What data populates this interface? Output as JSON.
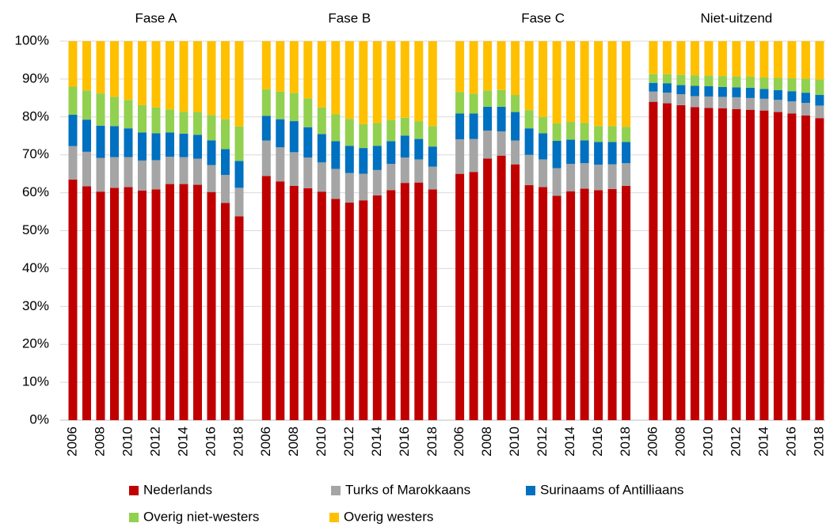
{
  "chart_data": {
    "type": "bar",
    "stacked": true,
    "groups": [
      "Fase A",
      "Fase B",
      "Fase C",
      "Niet-uitzend"
    ],
    "categories": [
      "2006",
      null,
      "2008",
      null,
      "2010",
      null,
      "2012",
      null,
      "2014",
      null,
      "2016",
      null,
      "2018"
    ],
    "ylim": [
      0,
      100
    ],
    "yticks": [
      {
        "value": 0,
        "label": "0%"
      },
      {
        "value": 10,
        "label": "10%"
      },
      {
        "value": 20,
        "label": "20%"
      },
      {
        "value": 30,
        "label": "30%"
      },
      {
        "value": 40,
        "label": "40%"
      },
      {
        "value": 50,
        "label": "50%"
      },
      {
        "value": 60,
        "label": "60%"
      },
      {
        "value": 70,
        "label": "70%"
      },
      {
        "value": 80,
        "label": "80%"
      },
      {
        "value": 90,
        "label": "90%"
      },
      {
        "value": 100,
        "label": "100%"
      }
    ],
    "grid": true,
    "series": [
      {
        "name": "Nederlands",
        "color": "#c00000",
        "values": [
          [
            63.5,
            61.7,
            60.3,
            61.3,
            61.5,
            60.6,
            60.9,
            62.3,
            62.3,
            62.1,
            60.2,
            57.3,
            53.8
          ],
          [
            64.4,
            63.0,
            61.8,
            61.2,
            60.3,
            58.4,
            57.4,
            58.0,
            59.3,
            60.7,
            62.6,
            62.7,
            60.9
          ],
          [
            65.0,
            65.5,
            69.0,
            69.8,
            67.5,
            62.0,
            61.5,
            59.2,
            60.4,
            61.1,
            60.7,
            61.0,
            61.8
          ],
          [
            84.0,
            83.6,
            83.1,
            82.6,
            82.4,
            82.3,
            82.1,
            81.9,
            81.7,
            81.3,
            80.9,
            80.4,
            79.7
          ]
        ]
      },
      {
        "name": "Turks of Marokkaans",
        "color": "#a5a5a5",
        "values": [
          [
            8.8,
            9.1,
            8.9,
            8.1,
            7.9,
            7.9,
            7.7,
            7.2,
            7.1,
            6.9,
            7.1,
            7.4,
            7.5
          ],
          [
            9.4,
            9.0,
            8.9,
            8.1,
            7.7,
            7.9,
            7.8,
            7.0,
            6.7,
            6.9,
            6.7,
            6.1,
            6.0
          ],
          [
            9.1,
            8.7,
            7.4,
            6.4,
            6.3,
            8.0,
            7.3,
            7.3,
            7.2,
            6.7,
            6.7,
            6.5,
            6.0
          ],
          [
            2.7,
            2.8,
            2.9,
            2.9,
            3.0,
            3.0,
            3.1,
            3.1,
            3.1,
            3.2,
            3.2,
            3.3,
            3.3
          ]
        ]
      },
      {
        "name": "Surinaams of Antilliaans",
        "color": "#0070c0",
        "values": [
          [
            8.3,
            8.5,
            8.5,
            8.2,
            7.6,
            7.4,
            7.1,
            6.4,
            6.2,
            6.3,
            6.5,
            6.8,
            7.1
          ],
          [
            6.5,
            7.4,
            8.2,
            8.0,
            7.5,
            7.3,
            7.2,
            6.8,
            6.4,
            6.0,
            5.8,
            5.4,
            5.3
          ],
          [
            6.8,
            6.7,
            6.3,
            6.5,
            7.5,
            7.0,
            6.9,
            7.2,
            6.4,
            6.0,
            6.0,
            5.9,
            5.6
          ],
          [
            2.3,
            2.5,
            2.4,
            2.7,
            2.7,
            2.6,
            2.6,
            2.7,
            2.6,
            2.6,
            2.7,
            2.7,
            2.8
          ]
        ]
      },
      {
        "name": "Overig niet-westers",
        "color": "#92d050",
        "values": [
          [
            7.4,
            7.7,
            8.5,
            7.7,
            7.5,
            7.2,
            6.8,
            6.1,
            5.8,
            6.0,
            6.7,
            7.9,
            9.1
          ],
          [
            7.0,
            7.3,
            7.4,
            7.6,
            7.0,
            7.1,
            7.1,
            6.3,
            6.0,
            5.6,
            4.7,
            4.7,
            5.4
          ],
          [
            5.7,
            5.2,
            4.3,
            4.4,
            4.5,
            4.8,
            4.3,
            4.6,
            4.7,
            4.6,
            4.2,
            4.2,
            4.0
          ],
          [
            2.3,
            2.4,
            2.7,
            2.8,
            2.8,
            2.9,
            2.9,
            2.9,
            3.0,
            3.2,
            3.4,
            3.7,
            4.1
          ]
        ]
      },
      {
        "name": "Overig westers",
        "color": "#ffc000",
        "values": [
          [
            12.0,
            13.0,
            13.8,
            14.7,
            15.5,
            16.9,
            17.5,
            18.0,
            18.6,
            18.7,
            19.5,
            20.6,
            22.5
          ],
          [
            12.7,
            13.3,
            13.7,
            15.1,
            17.5,
            19.3,
            20.5,
            21.9,
            21.6,
            20.8,
            20.2,
            21.1,
            22.4
          ],
          [
            13.4,
            13.9,
            13.0,
            12.9,
            14.2,
            18.2,
            20.0,
            21.7,
            21.3,
            21.6,
            22.4,
            22.4,
            22.6
          ],
          [
            8.7,
            8.7,
            8.9,
            9.0,
            9.1,
            9.2,
            9.3,
            9.4,
            9.6,
            9.7,
            9.8,
            9.9,
            10.1
          ]
        ]
      }
    ]
  }
}
